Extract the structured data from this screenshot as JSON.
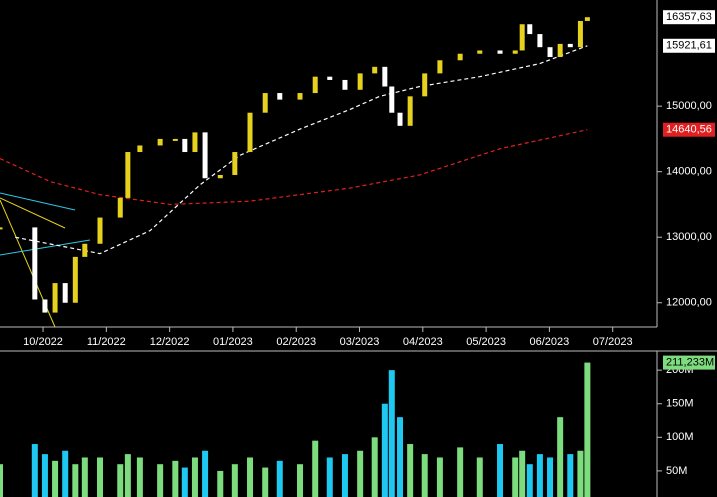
{
  "chart_data": [
    {
      "type": "candlestick",
      "x": [
        -0.68,
        -0.13,
        0.03,
        0.19,
        0.35,
        0.51,
        0.66,
        0.9,
        1.22,
        1.34,
        1.53,
        1.85,
        2.09,
        2.24,
        2.4,
        2.56,
        2.8,
        3.03,
        3.27,
        3.51,
        3.74,
        4.06,
        4.3,
        4.53,
        4.77,
        5.01,
        5.24,
        5.4,
        5.51,
        5.64,
        5.8,
        6.03,
        6.27,
        6.59,
        6.9,
        7.22,
        7.46,
        7.57,
        7.69,
        7.85,
        8.01,
        8.17,
        8.33,
        8.49,
        8.6
      ],
      "values": [
        13150,
        12050,
        11850,
        12300,
        12000,
        12700,
        12900,
        13300,
        13600,
        14300,
        14400,
        14500,
        14500,
        14300,
        14600,
        13900,
        13950,
        14300,
        14900,
        15200,
        15100,
        15200,
        15450,
        15400,
        15250,
        15500,
        15600,
        15300,
        14900,
        14700,
        15150,
        15500,
        15700,
        15800,
        15850,
        15800,
        15850,
        16250,
        16100,
        15900,
        15750,
        15950,
        15900,
        16300,
        16357.63
      ],
      "up_color": "#e6d21e",
      "down_color": "#ffffff",
      "lines": [
        {
          "color": "#ffffff",
          "x": [
            -0.44,
            0.9,
            1.69,
            2.48,
            3.11,
            4.06,
            4.85,
            5.32,
            5.95,
            6.9,
            7.85,
            8.6
          ],
          "values": [
            13000,
            12750,
            13100,
            13800,
            14250,
            14650,
            14950,
            15150,
            15300,
            15450,
            15650,
            15921.61
          ]
        },
        {
          "color": "#e02020",
          "x": [
            -0.68,
            0.11,
            0.9,
            2.01,
            3.27,
            4.85,
            5.95,
            7.22,
            8.6
          ],
          "values": [
            14200,
            13850,
            13650,
            13500,
            13550,
            13750,
            13950,
            14350,
            14640.56
          ]
        }
      ],
      "xlim": [
        -0.68,
        9.7
      ],
      "xticks": [
        {
          "value": 0,
          "label": "10/2022"
        },
        {
          "value": 1,
          "label": "11/2022"
        },
        {
          "value": 2,
          "label": "12/2022"
        },
        {
          "value": 3,
          "label": "01/2023"
        },
        {
          "value": 4,
          "label": "02/2023"
        },
        {
          "value": 5,
          "label": "03/2023"
        },
        {
          "value": 6,
          "label": "04/2023"
        },
        {
          "value": 7,
          "label": "05/2023"
        },
        {
          "value": 8,
          "label": "06/2023"
        },
        {
          "value": 9,
          "label": "07/2023"
        }
      ],
      "ylim": [
        11630,
        16620
      ],
      "yticks": [
        {
          "value": 12000,
          "label": "12000,00"
        },
        {
          "value": 13000,
          "label": "13000,00"
        },
        {
          "value": 14000,
          "label": "14000,00"
        },
        {
          "value": 15000,
          "label": "15000,00"
        }
      ],
      "markers": [
        {
          "value": 16357.63,
          "label": "16357,63",
          "color": "#ffffff"
        },
        {
          "value": 15921.61,
          "label": "15921,61",
          "color": "#ffffff"
        },
        {
          "value": 14640.56,
          "label": "14640,56",
          "color": "#e02020"
        }
      ]
    },
    {
      "type": "bar",
      "x": [
        -0.68,
        -0.13,
        0.03,
        0.19,
        0.35,
        0.51,
        0.66,
        0.9,
        1.22,
        1.34,
        1.53,
        1.85,
        2.09,
        2.24,
        2.4,
        2.56,
        2.8,
        3.03,
        3.27,
        3.51,
        3.74,
        4.06,
        4.3,
        4.53,
        4.77,
        5.01,
        5.24,
        5.4,
        5.51,
        5.64,
        5.8,
        6.03,
        6.27,
        6.59,
        6.9,
        7.22,
        7.46,
        7.57,
        7.69,
        7.85,
        8.01,
        8.17,
        8.33,
        8.49,
        8.6
      ],
      "values": [
        60,
        90,
        75,
        65,
        80,
        60,
        70,
        70,
        60,
        75,
        70,
        60,
        65,
        55,
        70,
        80,
        50,
        60,
        70,
        55,
        65,
        60,
        95,
        70,
        75,
        80,
        100,
        150,
        200,
        130,
        90,
        75,
        70,
        85,
        70,
        90,
        70,
        80,
        60,
        75,
        70,
        130,
        75,
        80,
        211.233
      ],
      "up_color": "#7ddc7d",
      "down_color": "#1ec8f0",
      "ylim": [
        0,
        227
      ],
      "yticks": [
        {
          "value": 50,
          "label": "50M"
        },
        {
          "value": 100,
          "label": "100M"
        },
        {
          "value": 150,
          "label": "150M"
        },
        {
          "value": 200,
          "label": "200M"
        }
      ],
      "markers": [
        {
          "value": 211.233,
          "label": "211,233M",
          "color": "#7ddc7d"
        }
      ]
    }
  ]
}
